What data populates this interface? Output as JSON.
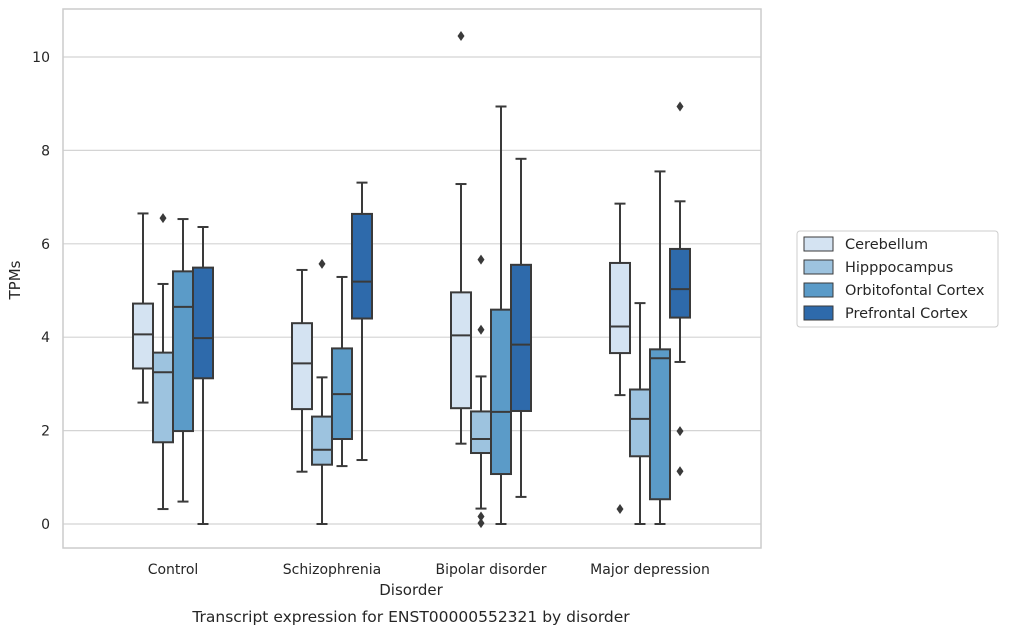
{
  "chart_data": {
    "type": "box",
    "caption": "Transcript expression for ENST00000552321 by disorder",
    "xlabel": "Disorder",
    "ylabel": "TPMs",
    "ylim": [
      -0.5,
      11.0
    ],
    "yticks": [
      0,
      2,
      4,
      6,
      8,
      10
    ],
    "grid": true,
    "legend_placement": "right",
    "categories": [
      "Control",
      "Schizophrenia",
      "Bipolar disorder",
      "Major depression"
    ],
    "series": [
      {
        "name": "Cerebellum",
        "color": "#d4e3f2",
        "boxes": [
          {
            "whisker_low": 2.6,
            "q1": 3.33,
            "median": 4.06,
            "q3": 4.72,
            "whisker_high": 6.65,
            "outliers": []
          },
          {
            "whisker_low": 1.12,
            "q1": 2.46,
            "median": 3.44,
            "q3": 4.3,
            "whisker_high": 5.44,
            "outliers": []
          },
          {
            "whisker_low": 1.72,
            "q1": 2.48,
            "median": 4.04,
            "q3": 4.96,
            "whisker_high": 7.28,
            "outliers": [
              10.45
            ]
          },
          {
            "whisker_low": 2.76,
            "q1": 3.66,
            "median": 4.23,
            "q3": 5.59,
            "whisker_high": 6.86,
            "outliers": [
              0.32
            ]
          }
        ]
      },
      {
        "name": "Hipppocampus",
        "color": "#9dc3df",
        "boxes": [
          {
            "whisker_low": 0.32,
            "q1": 1.75,
            "median": 3.25,
            "q3": 3.67,
            "whisker_high": 5.14,
            "outliers": [
              6.55
            ]
          },
          {
            "whisker_low": 0.0,
            "q1": 1.27,
            "median": 1.59,
            "q3": 2.3,
            "whisker_high": 3.14,
            "outliers": [
              5.57
            ]
          },
          {
            "whisker_low": 0.33,
            "q1": 1.52,
            "median": 1.82,
            "q3": 2.41,
            "whisker_high": 3.16,
            "outliers": [
              5.66,
              4.16,
              0.16,
              0.02
            ]
          },
          {
            "whisker_low": 0.0,
            "q1": 1.45,
            "median": 2.25,
            "q3": 2.88,
            "whisker_high": 4.73,
            "outliers": []
          }
        ]
      },
      {
        "name": "Orbitofontal Cortex",
        "color": "#5b9bc8",
        "boxes": [
          {
            "whisker_low": 0.48,
            "q1": 1.99,
            "median": 4.65,
            "q3": 5.41,
            "whisker_high": 6.53,
            "outliers": []
          },
          {
            "whisker_low": 1.24,
            "q1": 1.82,
            "median": 2.78,
            "q3": 3.76,
            "whisker_high": 5.29,
            "outliers": []
          },
          {
            "whisker_low": 0.0,
            "q1": 1.07,
            "median": 2.4,
            "q3": 4.59,
            "whisker_high": 8.94,
            "outliers": []
          },
          {
            "whisker_low": 0.0,
            "q1": 0.53,
            "median": 3.55,
            "q3": 3.74,
            "whisker_high": 7.55,
            "outliers": []
          }
        ]
      },
      {
        "name": "Prefrontal Cortex",
        "color": "#2e6aab",
        "boxes": [
          {
            "whisker_low": 0.0,
            "q1": 3.12,
            "median": 3.98,
            "q3": 5.49,
            "whisker_high": 6.36,
            "outliers": []
          },
          {
            "whisker_low": 1.37,
            "q1": 4.4,
            "median": 5.19,
            "q3": 6.64,
            "whisker_high": 7.31,
            "outliers": []
          },
          {
            "whisker_low": 0.58,
            "q1": 2.42,
            "median": 3.84,
            "q3": 5.55,
            "whisker_high": 7.82,
            "outliers": []
          },
          {
            "whisker_low": 3.47,
            "q1": 4.42,
            "median": 5.03,
            "q3": 5.89,
            "whisker_high": 6.91,
            "outliers": [
              8.94,
              1.99,
              1.13
            ]
          }
        ]
      }
    ]
  }
}
